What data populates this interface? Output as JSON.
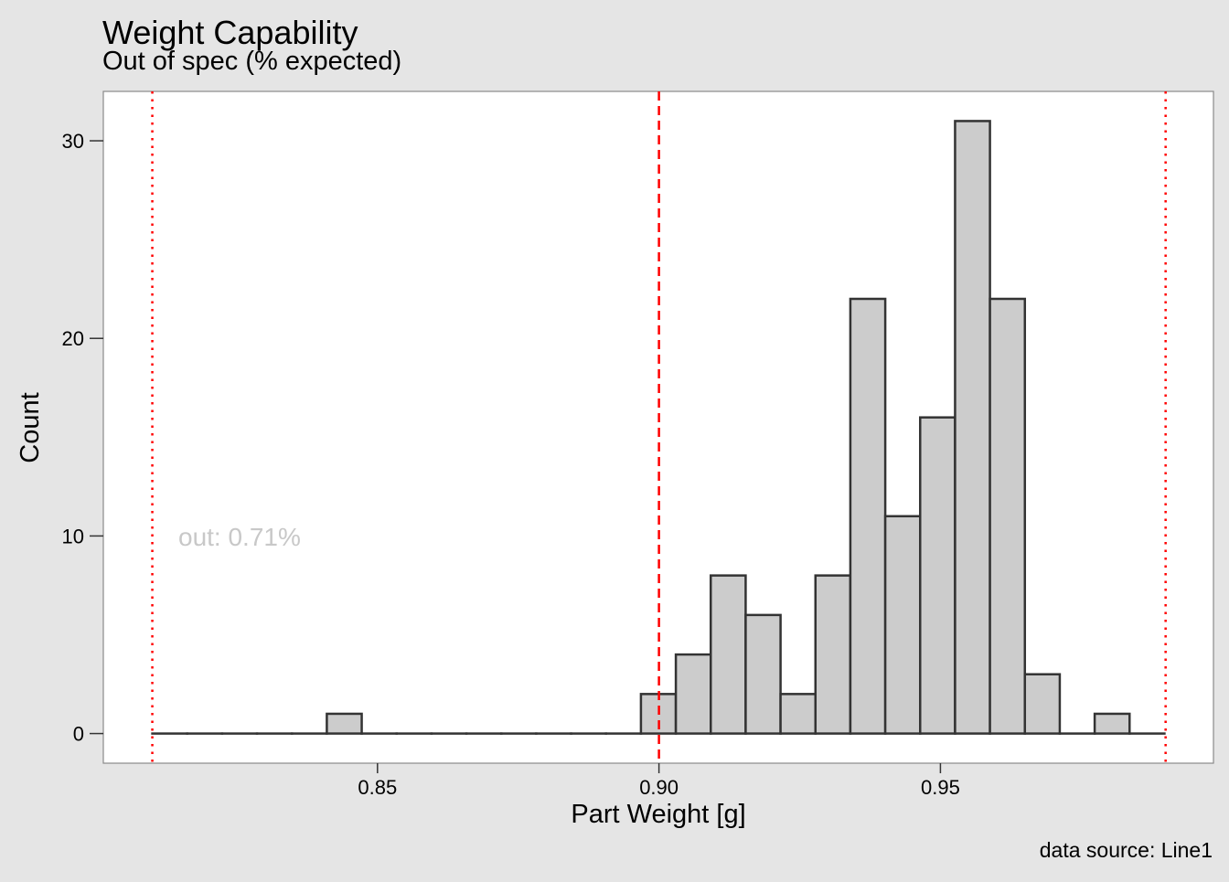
{
  "chart_data": {
    "type": "bar",
    "title": "Weight Capability",
    "subtitle": "Out of spec (% expected)",
    "xlabel": "Part Weight [g]",
    "ylabel": "Count",
    "caption": "data source: Line1",
    "annotation": "out: 0.71%",
    "xlim": [
      0.8013,
      0.9985
    ],
    "ylim": [
      -1.5,
      32.5
    ],
    "x_ticks": [
      0.85,
      0.9,
      0.95
    ],
    "x_tick_labels": [
      "0.85",
      "0.90",
      "0.95"
    ],
    "y_ticks": [
      0,
      10,
      20,
      30
    ],
    "y_tick_labels": [
      "0",
      "10",
      "20",
      "30"
    ],
    "grid": false,
    "bin_width": 0.0062,
    "bins": [
      {
        "x0": 0.81,
        "count": 0
      },
      {
        "x0": 0.8162,
        "count": 0
      },
      {
        "x0": 0.8224,
        "count": 0
      },
      {
        "x0": 0.8286,
        "count": 0
      },
      {
        "x0": 0.8348,
        "count": 0
      },
      {
        "x0": 0.841,
        "count": 1
      },
      {
        "x0": 0.8472,
        "count": 0
      },
      {
        "x0": 0.8534,
        "count": 0
      },
      {
        "x0": 0.8596,
        "count": 0
      },
      {
        "x0": 0.8658,
        "count": 0
      },
      {
        "x0": 0.872,
        "count": 0
      },
      {
        "x0": 0.8782,
        "count": 0
      },
      {
        "x0": 0.8844,
        "count": 0
      },
      {
        "x0": 0.8906,
        "count": 0
      },
      {
        "x0": 0.8968,
        "count": 2
      },
      {
        "x0": 0.903,
        "count": 4
      },
      {
        "x0": 0.9092,
        "count": 8
      },
      {
        "x0": 0.9154,
        "count": 6
      },
      {
        "x0": 0.9216,
        "count": 2
      },
      {
        "x0": 0.9278,
        "count": 8
      },
      {
        "x0": 0.934,
        "count": 22
      },
      {
        "x0": 0.9402,
        "count": 11
      },
      {
        "x0": 0.9464,
        "count": 16
      },
      {
        "x0": 0.9526,
        "count": 31
      },
      {
        "x0": 0.9588,
        "count": 22
      },
      {
        "x0": 0.965,
        "count": 3
      },
      {
        "x0": 0.9712,
        "count": 0
      },
      {
        "x0": 0.9774,
        "count": 1
      },
      {
        "x0": 0.9836,
        "count": 0
      }
    ],
    "reference_lines": [
      {
        "x": 0.81,
        "style": "dotted",
        "color": "#ff0000"
      },
      {
        "x": 0.9,
        "style": "dashed",
        "color": "#ff0000"
      },
      {
        "x": 0.99,
        "style": "dotted",
        "color": "#ff0000"
      }
    ],
    "colors": {
      "background": "#e5e5e5",
      "panel": "#ffffff",
      "bar_fill": "#cccccc",
      "bar_stroke": "#333333",
      "annotation": "#c8c8c8"
    }
  }
}
